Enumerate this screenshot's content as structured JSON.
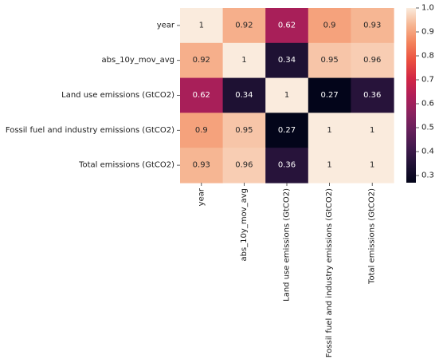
{
  "chart_data": {
    "type": "heatmap",
    "title": "",
    "xlabel": "",
    "ylabel": "",
    "row_labels": [
      "year",
      "abs_10y_mov_avg",
      "Land use emissions (GtCO2)",
      "Fossil fuel and industry emissions (GtCO2)",
      "Total emissions (GtCO2)"
    ],
    "col_labels": [
      "year",
      "abs_10y_mov_avg",
      "Land use emissions (GtCO2)",
      "Fossil fuel and industry emissions (GtCO2)",
      "Total emissions (GtCO2)"
    ],
    "values": [
      [
        1,
        0.92,
        0.62,
        0.9,
        0.93
      ],
      [
        0.92,
        1,
        0.34,
        0.95,
        0.96
      ],
      [
        0.62,
        0.34,
        1,
        0.27,
        0.36
      ],
      [
        0.9,
        0.95,
        0.27,
        1,
        1
      ],
      [
        0.93,
        0.96,
        0.36,
        1,
        1
      ]
    ],
    "annotations": [
      [
        "1",
        "0.92",
        "0.62",
        "0.9",
        "0.93"
      ],
      [
        "0.92",
        "1",
        "0.34",
        "0.95",
        "0.96"
      ],
      [
        "0.62",
        "0.34",
        "1",
        "0.27",
        "0.36"
      ],
      [
        "0.9",
        "0.95",
        "0.27",
        "1",
        "1"
      ],
      [
        "0.93",
        "0.96",
        "0.36",
        "1",
        "1"
      ]
    ],
    "colormap": "rocket",
    "colorbar": {
      "vmin": 0.27,
      "vmax": 1.0,
      "ticks": [
        0.3,
        0.4,
        0.5,
        0.6,
        0.7,
        0.8,
        0.9,
        1.0
      ],
      "tick_labels": [
        "0.3",
        "0.4",
        "0.5",
        "0.6",
        "0.7",
        "0.8",
        "0.9",
        "1.0"
      ]
    },
    "grid": false,
    "legend": "none"
  }
}
